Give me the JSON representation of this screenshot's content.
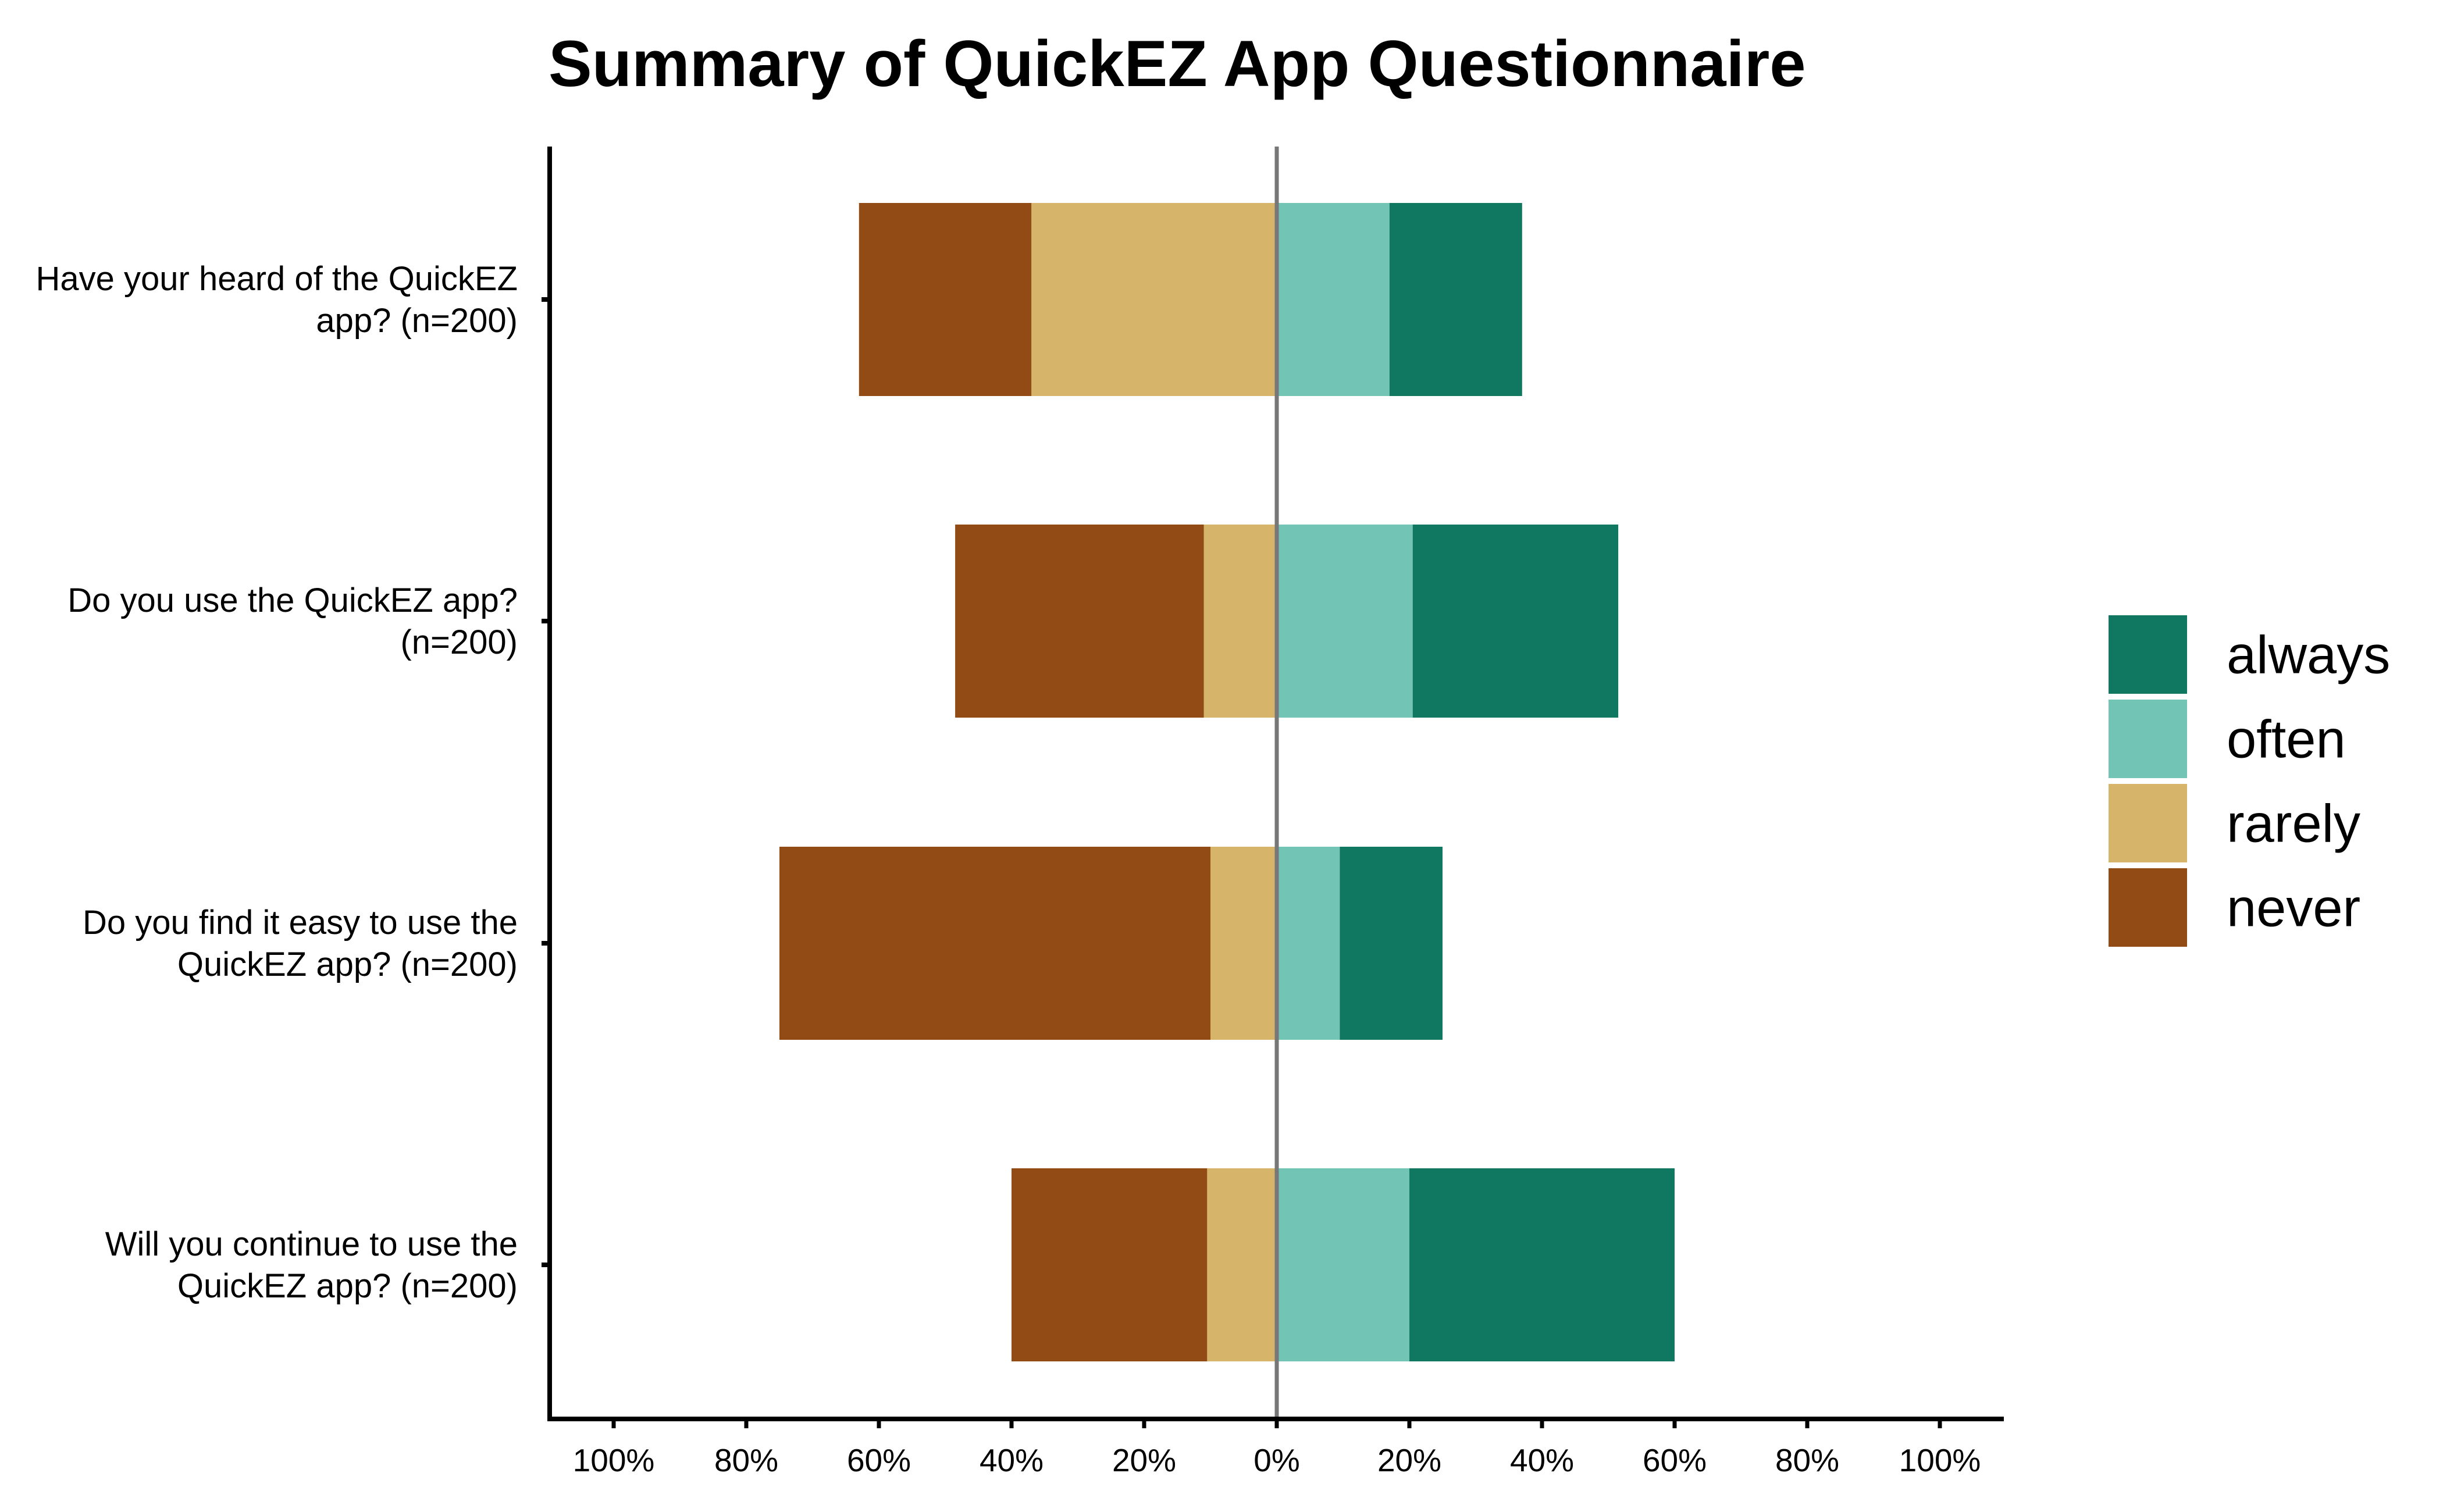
{
  "chart_data": {
    "type": "bar",
    "orientation": "horizontal",
    "stacked": "diverging",
    "title": "Summary of QuickEZ App Questionnaire",
    "xlabel": "",
    "ylabel": "",
    "xlim": [
      -100,
      100
    ],
    "x_ticks": [
      -100,
      -80,
      -60,
      -40,
      -20,
      0,
      20,
      40,
      60,
      80,
      100
    ],
    "x_tick_labels": [
      "100%",
      "80%",
      "60%",
      "40%",
      "20%",
      "0%",
      "20%",
      "40%",
      "60%",
      "80%",
      "100%"
    ],
    "categories": [
      [
        "Have your heard of the QuickEZ",
        "app? (n=200)"
      ],
      [
        "Do you use the QuickEZ app?",
        "(n=200)"
      ],
      [
        "Do you find it easy to use the",
        "QuickEZ app? (n=200)"
      ],
      [
        "Will you continue to use the",
        "QuickEZ app? (n=200)"
      ]
    ],
    "series": [
      {
        "name": "never",
        "side": "negative",
        "color": "#934B16",
        "values": [
          26,
          37.5,
          65,
          29.5
        ]
      },
      {
        "name": "rarely",
        "side": "negative",
        "color": "#D6B46A",
        "values": [
          37,
          11,
          10,
          10.5
        ]
      },
      {
        "name": "often",
        "side": "positive",
        "color": "#72C4B4",
        "values": [
          17,
          20.5,
          9.5,
          20
        ]
      },
      {
        "name": "always",
        "side": "positive",
        "color": "#107760",
        "values": [
          20,
          31,
          15.5,
          40
        ]
      }
    ],
    "legend": {
      "position": "right",
      "order": [
        "always",
        "often",
        "rarely",
        "never"
      ]
    },
    "grid": false,
    "zero_line_color": "#777777"
  }
}
